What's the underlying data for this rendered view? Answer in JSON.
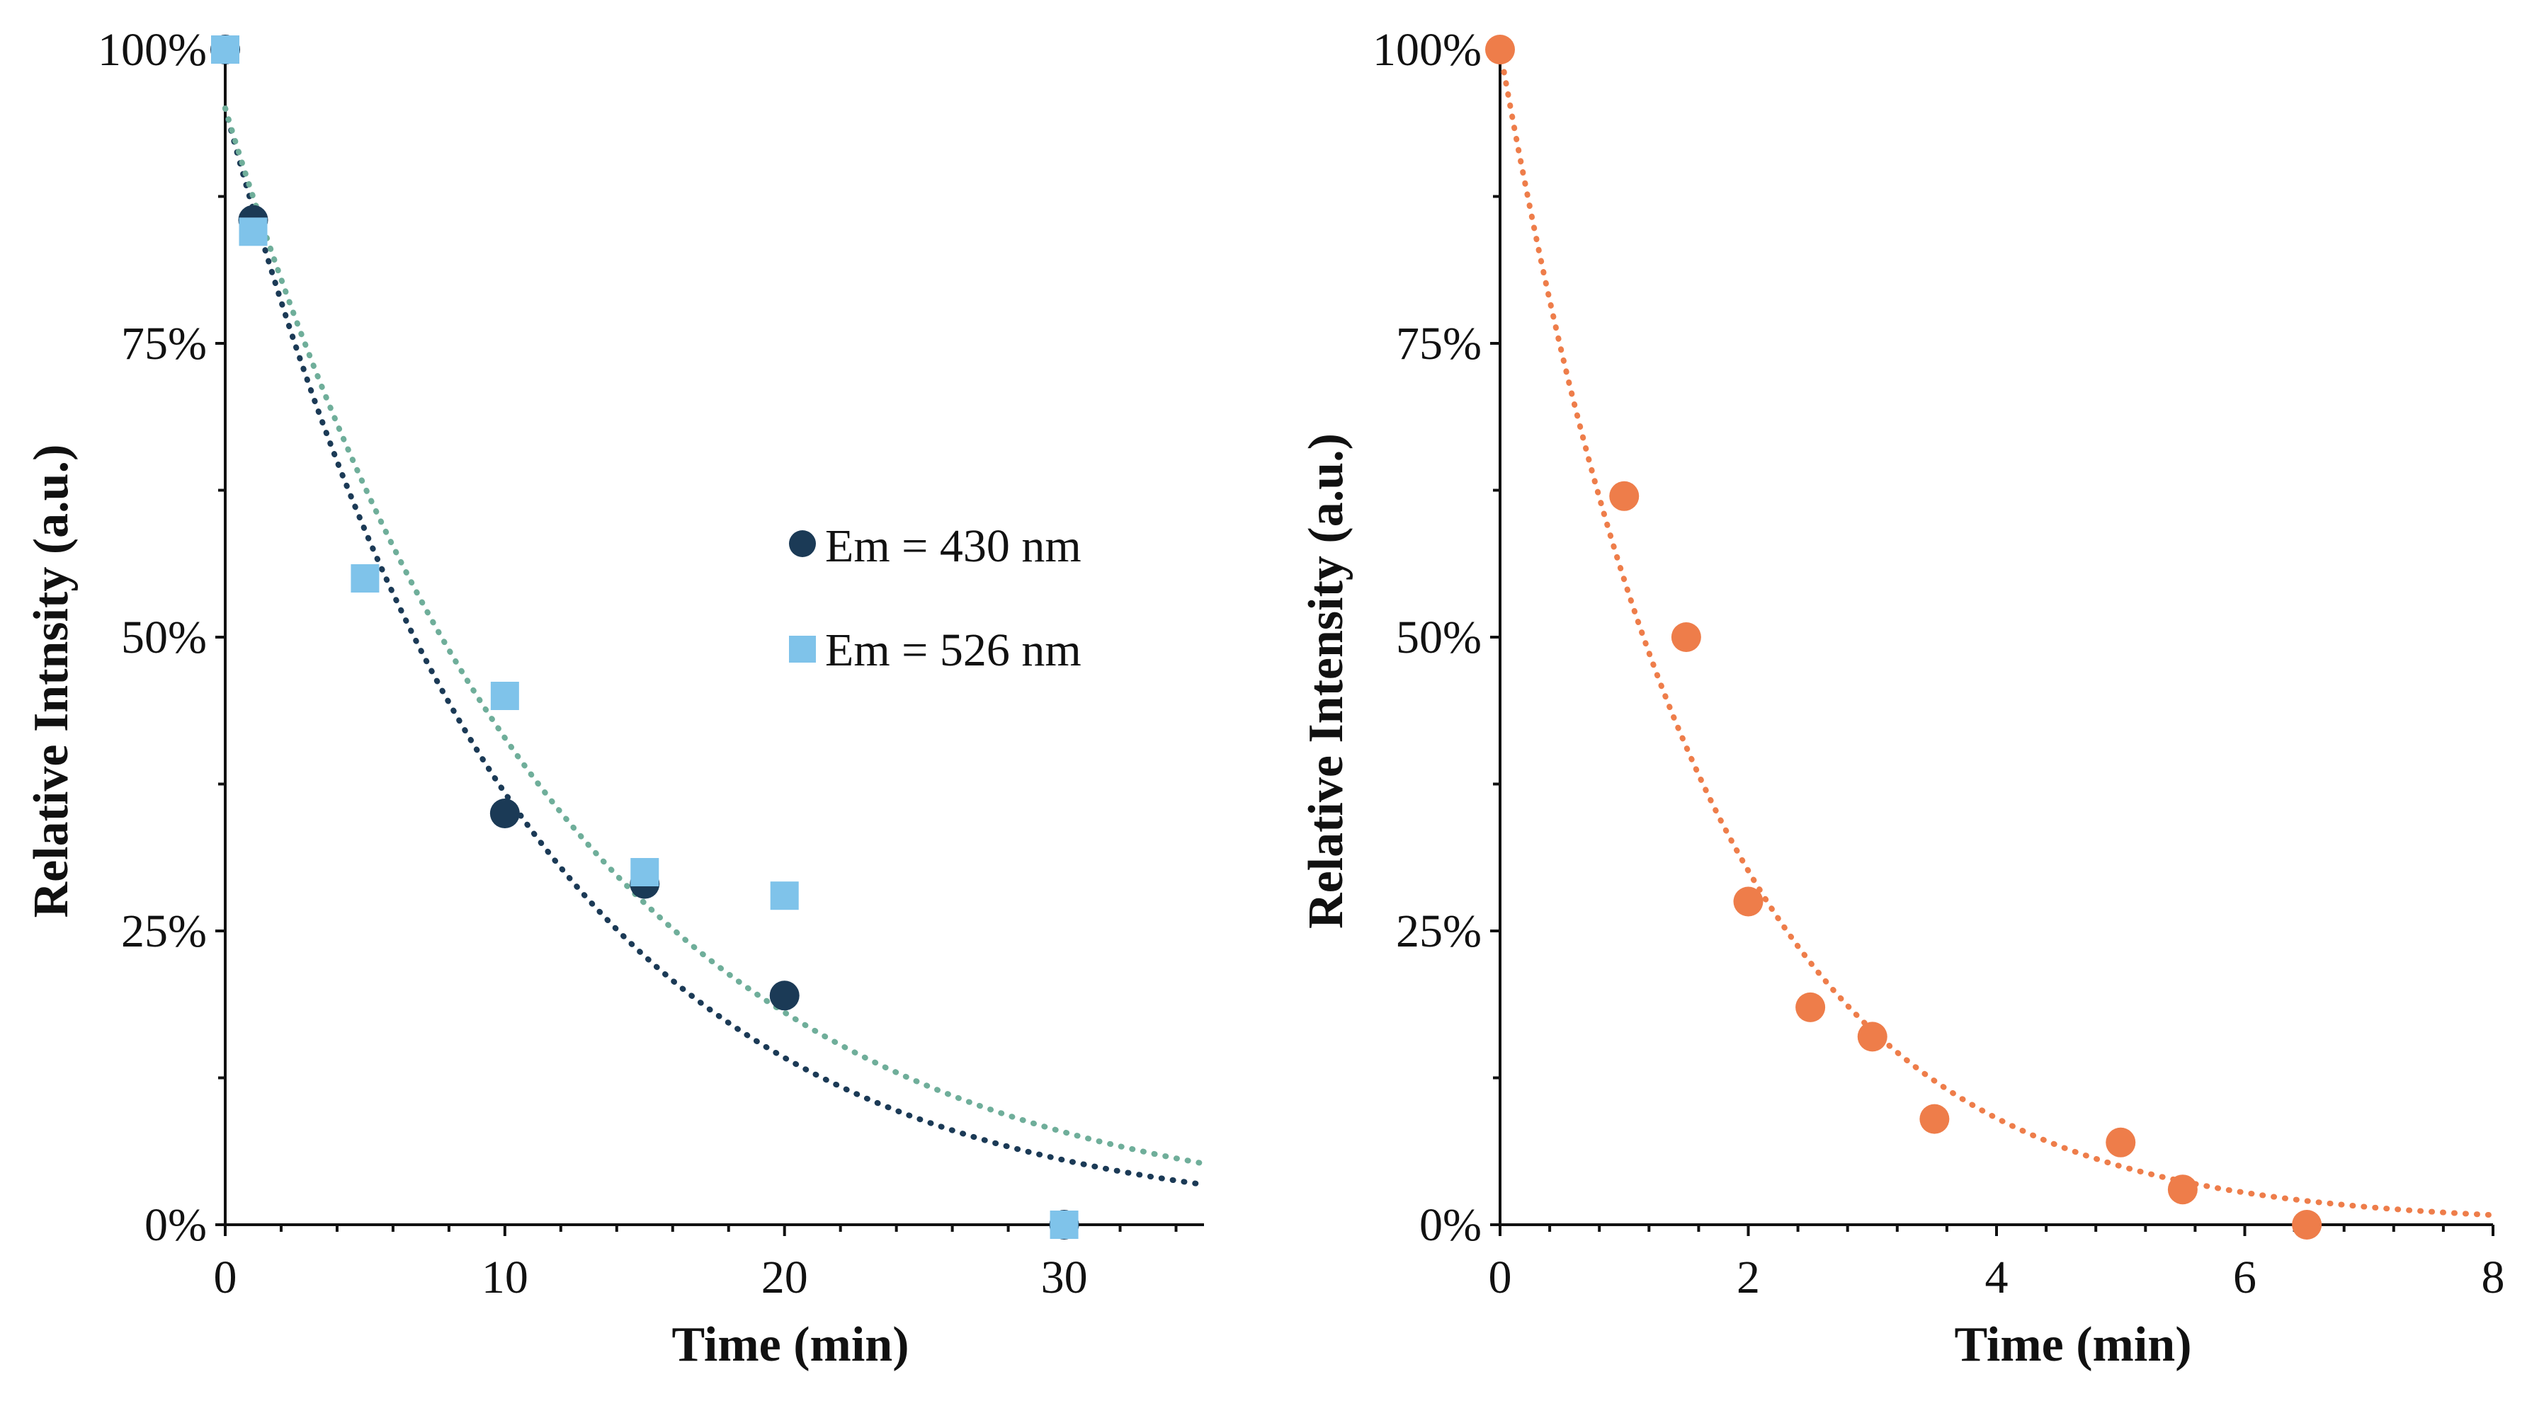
{
  "chart_data": [
    {
      "type": "scatter",
      "title": "",
      "xlabel": "Time (min)",
      "ylabel": "Relative Intnsity (a.u.)",
      "xlim": [
        0,
        35
      ],
      "ylim": [
        0,
        100
      ],
      "x_ticks": [
        0,
        10,
        20,
        30
      ],
      "x_tick_labels": [
        "0",
        "10",
        "20",
        "30"
      ],
      "y_ticks": [
        0,
        25,
        50,
        75,
        100
      ],
      "y_tick_labels": [
        "0%",
        "25%",
        "50%",
        "75%",
        "100%"
      ],
      "legend_position": "center-right",
      "grid": false,
      "series": [
        {
          "name": "Em = 430 nm",
          "marker": "circle",
          "color": "#1b3a56",
          "x": [
            0,
            1,
            10,
            15,
            20,
            30
          ],
          "y": [
            100,
            85.5,
            35,
            29,
            19.5,
            0
          ],
          "trendline": {
            "type": "exponential",
            "a": 95,
            "k": 0.095,
            "color": "#1b3a56"
          }
        },
        {
          "name": "Em = 526 nm",
          "marker": "square",
          "color": "#7fc3ea",
          "x": [
            0,
            1,
            5,
            10,
            15,
            20,
            30
          ],
          "y": [
            100,
            84.5,
            55,
            45,
            30,
            28,
            0
          ],
          "trendline": {
            "type": "exponential",
            "a": 95,
            "k": 0.083,
            "color": "#6fae9a"
          }
        }
      ]
    },
    {
      "type": "scatter",
      "title": "",
      "xlabel": "Time (min)",
      "ylabel": "Relative Intensity (a.u.)",
      "xlim": [
        0,
        8
      ],
      "ylim": [
        0,
        100
      ],
      "x_ticks": [
        0,
        2,
        4,
        6,
        8
      ],
      "x_tick_labels": [
        "0",
        "2",
        "4",
        "6",
        "8"
      ],
      "y_ticks": [
        0,
        25,
        50,
        75,
        100
      ],
      "y_tick_labels": [
        "0%",
        "25%",
        "50%",
        "75%",
        "100%"
      ],
      "grid": false,
      "series": [
        {
          "name": "",
          "marker": "circle",
          "color": "#ee7d4a",
          "x": [
            0,
            1,
            1.5,
            2,
            2.5,
            3,
            3.5,
            5,
            5.5,
            6.5
          ],
          "y": [
            100,
            62,
            50,
            27.5,
            18.5,
            16,
            9,
            7,
            3,
            0
          ],
          "trendline": {
            "type": "exponential",
            "a": 100,
            "k": 0.6,
            "color": "#ee7d4a"
          }
        }
      ]
    }
  ]
}
